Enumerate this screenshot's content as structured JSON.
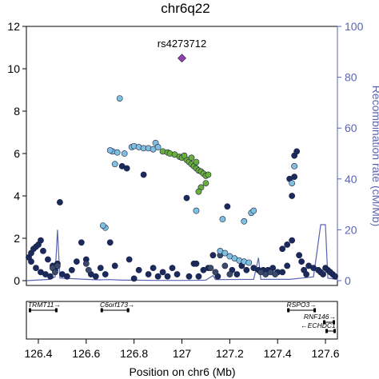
{
  "chart_data": {
    "type": "scatter",
    "title": "chr6q22",
    "xlabel": "Position on chr6 (Mb)",
    "ylabel": "",
    "y2label": "Recombination rate (cM/Mb)",
    "xlim": [
      126.35,
      127.65
    ],
    "ylim": [
      0,
      12
    ],
    "y2lim": [
      0,
      100
    ],
    "xticks": [
      "126.4",
      "126.6",
      "126.8",
      "127",
      "127.2",
      "127.4",
      "127.6"
    ],
    "xtick_values": [
      126.4,
      126.6,
      126.8,
      127.0,
      127.2,
      127.4,
      127.6
    ],
    "yticks": [
      "0",
      "2",
      "4",
      "6",
      "8",
      "10",
      "12"
    ],
    "y2ticks": [
      "0",
      "20",
      "40",
      "60",
      "80",
      "100"
    ],
    "lead_snp": {
      "label": "rs4273712",
      "x": 127.0,
      "y": 10.5,
      "color": "#8e44ad"
    },
    "colors": {
      "ld_high": "#6aaf3c",
      "ld_mid": "#7fbfe0",
      "ld_low": "#1a2a5c",
      "ld_midlow": "#3a4a6a",
      "recombination": "#5a63b0",
      "axis": "#000000",
      "right_axis": "#5a63b0"
    },
    "series": [
      {
        "ld": "high",
        "color": "#6aaf3c",
        "points": [
          [
            126.92,
            6.1
          ],
          [
            126.94,
            6.05
          ],
          [
            126.95,
            6.0
          ],
          [
            126.97,
            5.95
          ],
          [
            126.99,
            5.85
          ],
          [
            127.0,
            5.8
          ],
          [
            127.02,
            5.7
          ],
          [
            127.03,
            5.6
          ],
          [
            127.04,
            5.5
          ],
          [
            127.05,
            5.4
          ],
          [
            127.06,
            5.3
          ],
          [
            127.07,
            5.2
          ],
          [
            127.08,
            5.15
          ],
          [
            127.09,
            5.05
          ],
          [
            127.1,
            4.95
          ],
          [
            127.11,
            5.0
          ],
          [
            127.1,
            4.6
          ],
          [
            127.08,
            4.4
          ],
          [
            127.07,
            4.2
          ],
          [
            127.06,
            5.6
          ],
          [
            127.04,
            5.8
          ],
          [
            127.01,
            5.9
          ]
        ]
      },
      {
        "ld": "mid",
        "color": "#7fbfe0",
        "points": [
          [
            126.74,
            8.6
          ],
          [
            126.71,
            6.1
          ],
          [
            126.73,
            6.05
          ],
          [
            126.76,
            6.0
          ],
          [
            126.72,
            5.5
          ],
          [
            126.79,
            6.3
          ],
          [
            126.8,
            6.35
          ],
          [
            126.82,
            6.3
          ],
          [
            126.84,
            6.25
          ],
          [
            126.86,
            6.25
          ],
          [
            126.88,
            6.2
          ],
          [
            126.89,
            6.5
          ],
          [
            126.9,
            6.3
          ],
          [
            126.7,
            6.15
          ],
          [
            126.68,
            2.5
          ],
          [
            126.67,
            2.6
          ],
          [
            127.06,
            3.3
          ],
          [
            127.17,
            2.9
          ],
          [
            127.26,
            2.8
          ],
          [
            127.29,
            3.2
          ],
          [
            127.3,
            3.3
          ],
          [
            127.47,
            5.4
          ],
          [
            127.46,
            4.6
          ],
          [
            127.16,
            1.4
          ],
          [
            127.18,
            1.3
          ],
          [
            127.2,
            1.15
          ],
          [
            127.22,
            1.05
          ],
          [
            127.24,
            0.95
          ],
          [
            127.26,
            0.9
          ],
          [
            127.28,
            0.85
          ]
        ]
      },
      {
        "ld": "low",
        "color": "#1a2a5c",
        "points": [
          [
            126.36,
            1.1
          ],
          [
            126.37,
            1.3
          ],
          [
            126.38,
            1.5
          ],
          [
            126.39,
            1.6
          ],
          [
            126.4,
            1.7
          ],
          [
            126.41,
            1.9
          ],
          [
            126.42,
            1.4
          ],
          [
            126.37,
            0.9
          ],
          [
            126.39,
            0.6
          ],
          [
            126.41,
            0.4
          ],
          [
            126.43,
            0.3
          ],
          [
            126.45,
            0.2
          ],
          [
            126.47,
            0.5
          ],
          [
            126.48,
            0.8
          ],
          [
            126.49,
            3.7
          ],
          [
            126.44,
            1.0
          ],
          [
            126.46,
            0.7
          ],
          [
            126.5,
            0.3
          ],
          [
            126.52,
            0.2
          ],
          [
            126.54,
            0.5
          ],
          [
            126.56,
            0.9
          ],
          [
            126.58,
            1.8
          ],
          [
            126.6,
            1.0
          ],
          [
            126.62,
            0.3
          ],
          [
            126.64,
            0.2
          ],
          [
            126.66,
            0.6
          ],
          [
            126.68,
            0.3
          ],
          [
            126.7,
            1.8
          ],
          [
            126.72,
            0.7
          ],
          [
            126.75,
            5.4
          ],
          [
            126.77,
            5.3
          ],
          [
            126.78,
            1.0
          ],
          [
            126.8,
            0.1
          ],
          [
            126.82,
            0.5
          ],
          [
            126.84,
            5.0
          ],
          [
            126.86,
            0.3
          ],
          [
            126.88,
            0.6
          ],
          [
            126.9,
            0.2
          ],
          [
            126.92,
            0.4
          ],
          [
            126.94,
            0.2
          ],
          [
            126.96,
            0.6
          ],
          [
            126.98,
            0.3
          ],
          [
            127.02,
            3.9
          ],
          [
            127.03,
            0.2
          ],
          [
            127.05,
            0.8
          ],
          [
            127.07,
            0.2
          ],
          [
            127.09,
            0.5
          ],
          [
            127.11,
            0.6
          ],
          [
            127.13,
            1.2
          ],
          [
            127.15,
            0.2
          ],
          [
            127.19,
            3.5
          ],
          [
            127.21,
            0.5
          ],
          [
            127.23,
            0.3
          ],
          [
            127.25,
            0.7
          ],
          [
            127.27,
            0.5
          ],
          [
            127.3,
            0.6
          ],
          [
            127.32,
            0.5
          ],
          [
            127.34,
            0.5
          ],
          [
            127.36,
            0.5
          ],
          [
            127.38,
            0.6
          ],
          [
            127.4,
            0.4
          ],
          [
            127.42,
            1.5
          ],
          [
            127.44,
            1.7
          ],
          [
            127.45,
            4.8
          ],
          [
            127.46,
            4.0
          ],
          [
            127.47,
            5.9
          ],
          [
            127.48,
            6.1
          ],
          [
            127.47,
            4.9
          ],
          [
            127.49,
            1.2
          ],
          [
            127.5,
            0.9
          ],
          [
            127.51,
            0.5
          ],
          [
            127.52,
            0.3
          ],
          [
            127.53,
            0.7
          ],
          [
            127.55,
            0.6
          ],
          [
            127.57,
            0.5
          ],
          [
            127.58,
            0.4
          ],
          [
            127.59,
            0.3
          ],
          [
            127.6,
            0.6
          ],
          [
            127.61,
            0.5
          ],
          [
            127.62,
            0.4
          ],
          [
            127.63,
            0.3
          ],
          [
            127.64,
            0.2
          ],
          [
            127.46,
            1.9
          ],
          [
            127.44,
            0.7
          ],
          [
            127.42,
            0.4
          ],
          [
            127.06,
            0.8
          ]
        ]
      },
      {
        "ld": "midlow",
        "color": "#3a4a6a",
        "points": [
          [
            126.46,
            0.6
          ],
          [
            126.47,
            0.4
          ],
          [
            126.48,
            0.7
          ],
          [
            126.6,
            0.8
          ],
          [
            126.61,
            0.5
          ],
          [
            127.12,
            0.6
          ],
          [
            127.14,
            0.4
          ],
          [
            127.16,
            1.2
          ],
          [
            127.18,
            0.7
          ],
          [
            127.2,
            0.3
          ],
          [
            127.33,
            0.4
          ],
          [
            127.35,
            0.3
          ],
          [
            127.37,
            0.4
          ],
          [
            127.39,
            0.3
          ]
        ]
      }
    ],
    "recombination": [
      [
        126.35,
        0
      ],
      [
        126.45,
        0.5
      ],
      [
        126.47,
        1.5
      ],
      [
        126.48,
        20
      ],
      [
        126.49,
        1
      ],
      [
        126.6,
        0.5
      ],
      [
        126.65,
        0.3
      ],
      [
        126.7,
        0.4
      ],
      [
        126.75,
        0.2
      ],
      [
        126.8,
        0.2
      ],
      [
        126.9,
        0.1
      ],
      [
        127.0,
        0.1
      ],
      [
        127.1,
        0.2
      ],
      [
        127.13,
        2
      ],
      [
        127.14,
        0.4
      ],
      [
        127.3,
        0.5
      ],
      [
        127.32,
        9
      ],
      [
        127.33,
        0.5
      ],
      [
        127.45,
        0.5
      ],
      [
        127.5,
        1
      ],
      [
        127.55,
        1.5
      ],
      [
        127.58,
        22
      ],
      [
        127.6,
        22
      ],
      [
        127.61,
        1
      ],
      [
        127.65,
        0.5
      ]
    ],
    "genes": [
      {
        "name": "TRMT11",
        "start": 126.36,
        "end": 126.48,
        "row": 0,
        "label_x": 126.42
      },
      {
        "name": "C6orf173",
        "start": 126.66,
        "end": 126.78,
        "row": 0,
        "label_x": 126.73
      },
      {
        "name": "RSPO3",
        "start": 127.44,
        "end": 127.56,
        "row": 0,
        "label_x": 127.5
      },
      {
        "name": "RNF146",
        "start": 127.59,
        "end": 127.64,
        "row": 1,
        "label_x": 127.58
      },
      {
        "name": "ECHDC1",
        "start": 127.6,
        "end": 127.65,
        "row": 2,
        "label_x": 127.58
      }
    ],
    "gene_labels": {
      "TRMT11": "TRMT11→",
      "C6orf173": "C6orf173→",
      "RSPO3": "RSPO3→",
      "RNF146": "RNF146→",
      "ECHDC1": "←ECHDC1"
    }
  }
}
